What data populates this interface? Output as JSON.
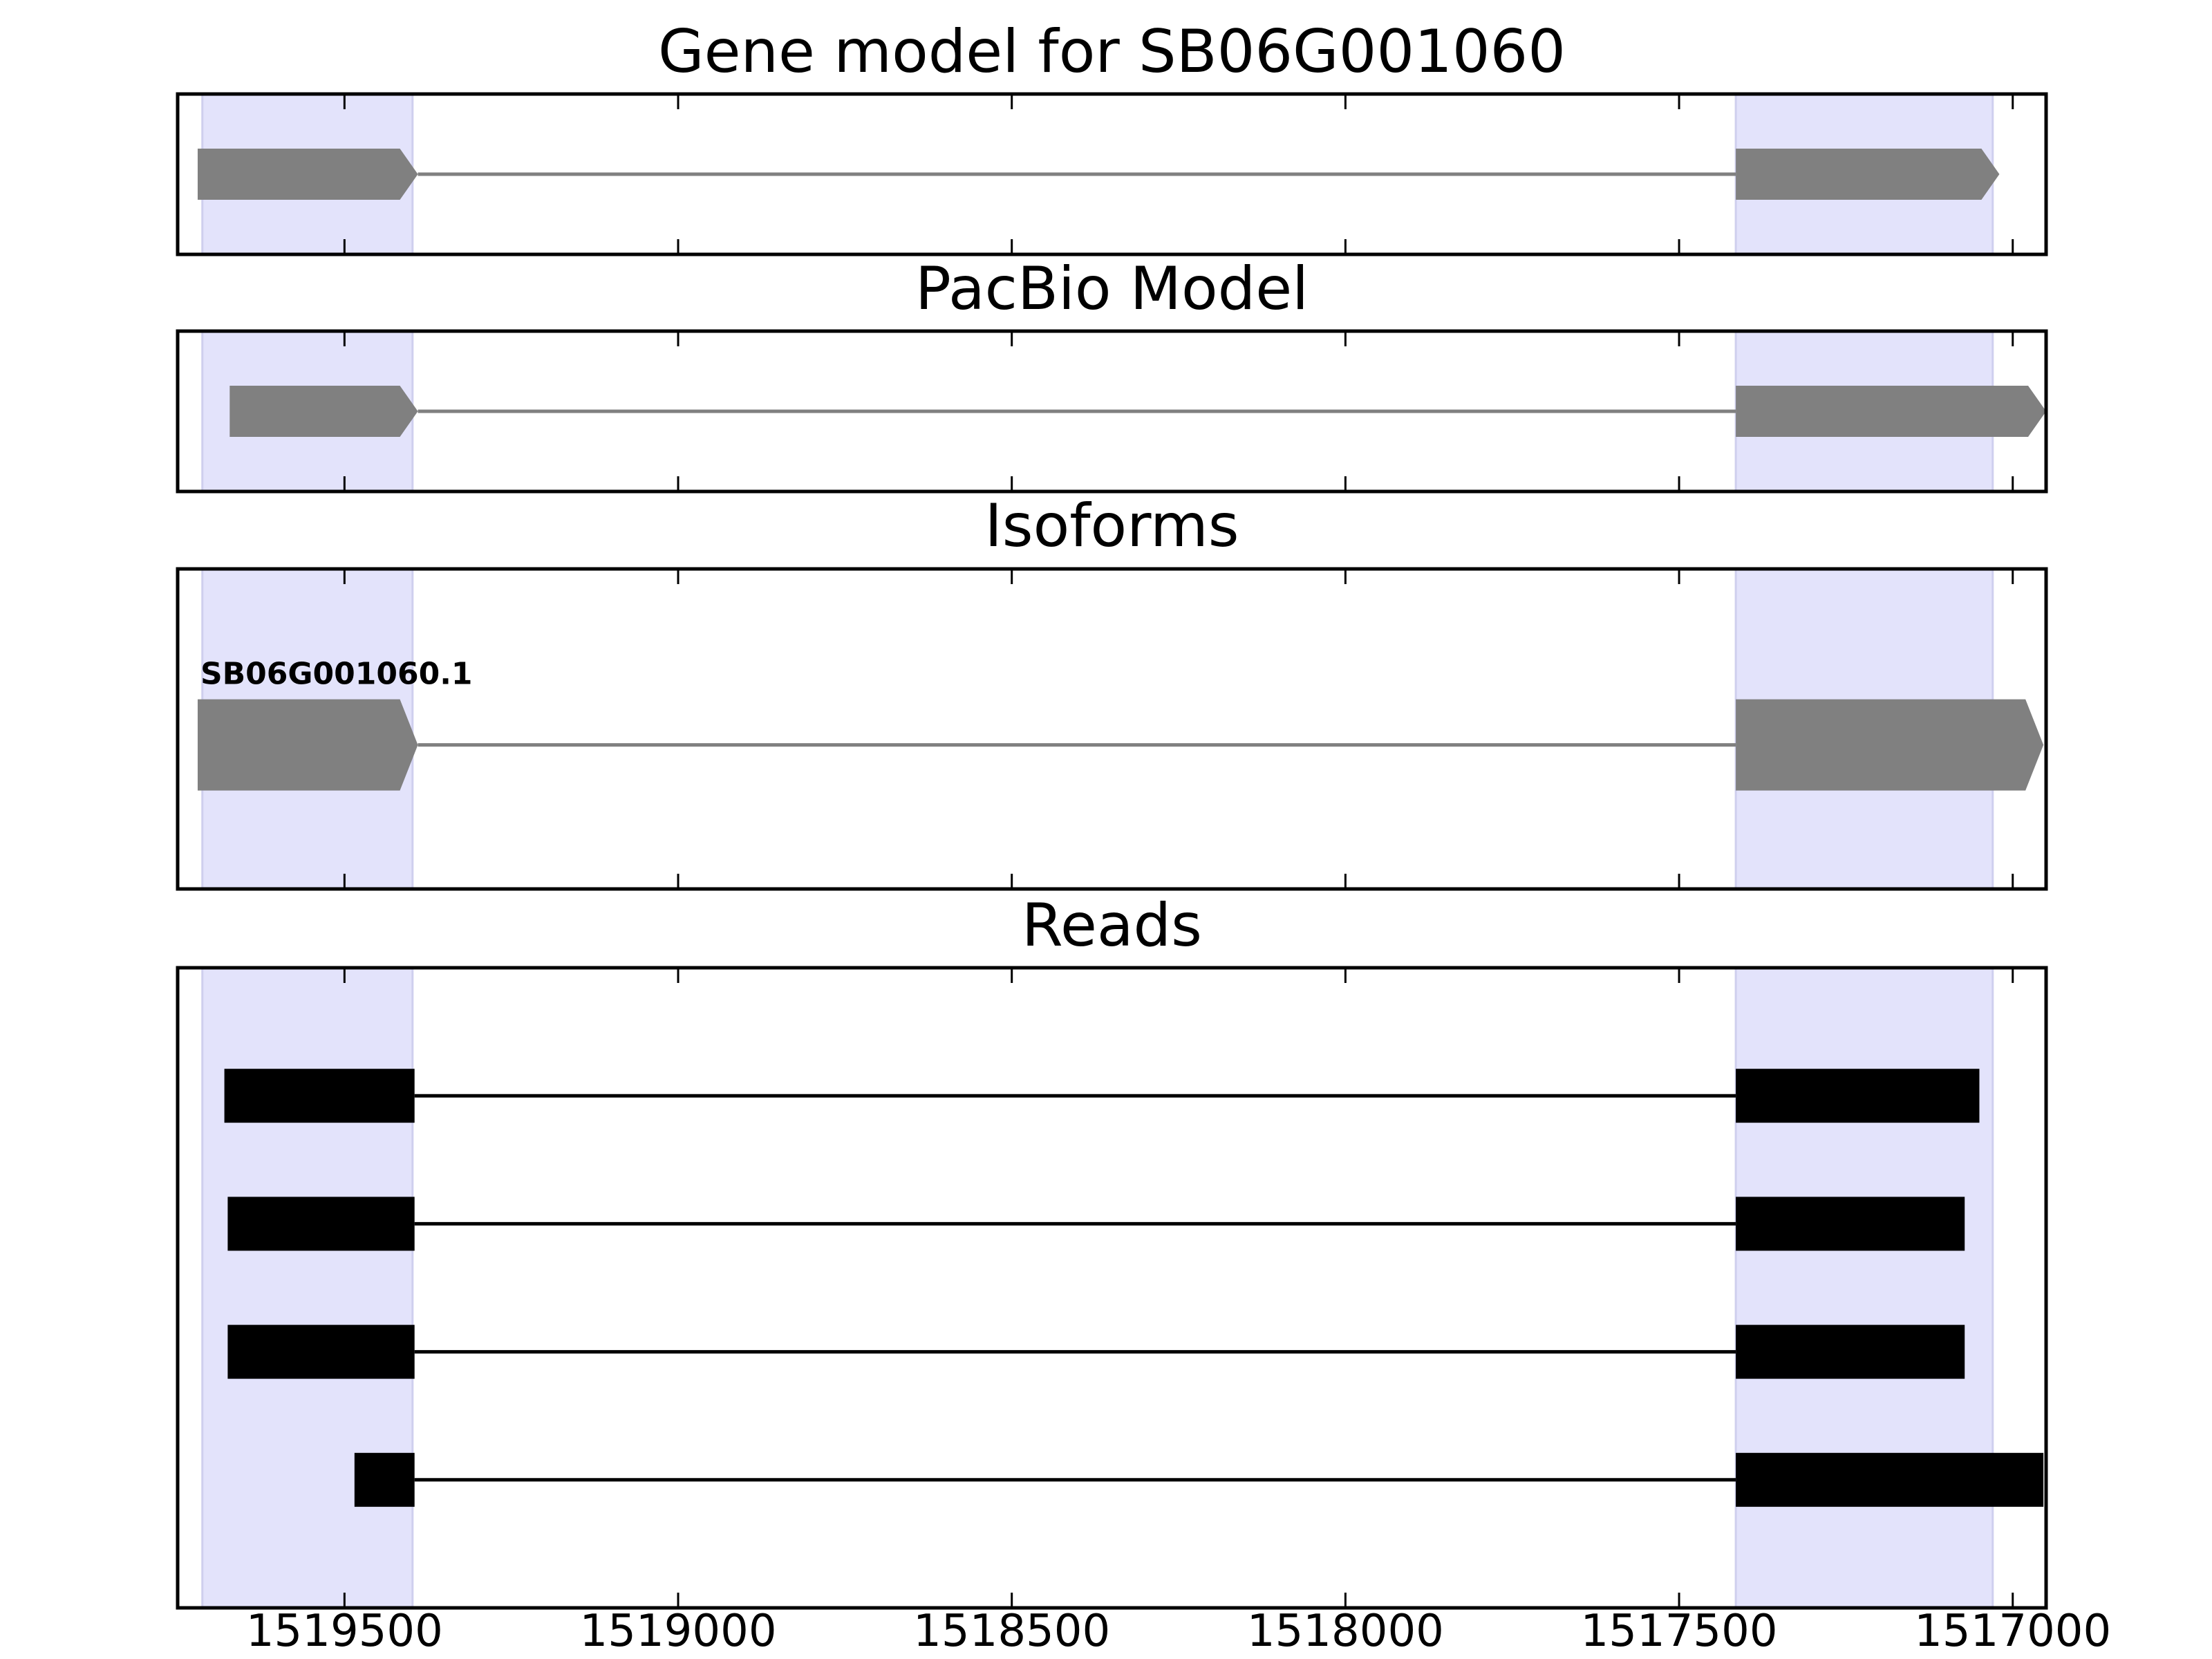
{
  "chart_data": {
    "type": "gene-model",
    "x_axis": {
      "xlim": [
        1519750,
        1516950
      ],
      "reversed": true,
      "ticks": [
        1519500,
        1519000,
        1518500,
        1518000,
        1517500,
        1517000
      ],
      "tick_labels": [
        "1519500",
        "1519000",
        "1518500",
        "1518000",
        "1517500",
        "1517000"
      ]
    },
    "colors": {
      "highlight": "#e3e3fb",
      "highlight_edge": "#cfcfee",
      "model": "#808080",
      "read": "#000000",
      "frame": "#000000"
    },
    "highlight_regions": [
      [
        1519713,
        1519398
      ],
      [
        1517415,
        1517030
      ]
    ],
    "panels": [
      {
        "id": "gene-model",
        "title": "Gene model for SB06G001060",
        "ylim": [
          0,
          1
        ],
        "tracks": [
          {
            "label": "",
            "y": 0.5,
            "arrow": true,
            "exons": [
              [
                1519720,
                1519390
              ],
              [
                1517415,
                1517020
              ]
            ]
          }
        ]
      },
      {
        "id": "pacbio-model",
        "title": "PacBio Model",
        "ylim": [
          0,
          1
        ],
        "tracks": [
          {
            "label": "",
            "y": 0.5,
            "arrow": true,
            "exons": [
              [
                1519672,
                1519390
              ],
              [
                1517415,
                1516950
              ]
            ]
          }
        ]
      },
      {
        "id": "isoforms",
        "title": "Isoforms",
        "ylim": [
          0,
          1
        ],
        "tracks": [
          {
            "label": "SB06G001060.1",
            "y": 0.45,
            "arrow": true,
            "exons": [
              [
                1519720,
                1519390
              ],
              [
                1517415,
                1516954
              ]
            ]
          }
        ]
      },
      {
        "id": "reads",
        "title": "Reads",
        "ylim": [
          0,
          5
        ],
        "tracks": [
          {
            "label": "",
            "y": 4.0,
            "arrow": false,
            "exons": [
              [
                1519680,
                1519395
              ],
              [
                1517415,
                1517050
              ]
            ]
          },
          {
            "label": "",
            "y": 3.0,
            "arrow": false,
            "exons": [
              [
                1519675,
                1519395
              ],
              [
                1517415,
                1517072
              ]
            ]
          },
          {
            "label": "",
            "y": 2.0,
            "arrow": false,
            "exons": [
              [
                1519675,
                1519395
              ],
              [
                1517415,
                1517072
              ]
            ]
          },
          {
            "label": "",
            "y": 1.0,
            "arrow": false,
            "exons": [
              [
                1519485,
                1519395
              ],
              [
                1517415,
                1516954
              ]
            ]
          }
        ]
      }
    ]
  }
}
